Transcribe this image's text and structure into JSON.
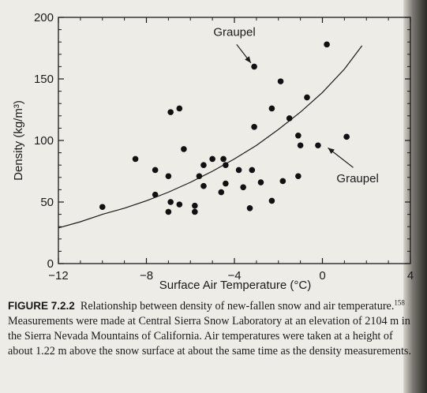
{
  "chart_data": {
    "type": "scatter",
    "xlabel": "Surface Air Temperature (°C)",
    "ylabel": "Density (kg/m³)",
    "xlim": [
      -12,
      4
    ],
    "ylim": [
      0,
      200
    ],
    "xticks": [
      -12,
      -8,
      -4,
      0,
      4
    ],
    "xtick_labels": [
      "−12",
      "−8",
      "−4",
      "0",
      "4"
    ],
    "yticks": [
      0,
      50,
      100,
      150,
      200
    ],
    "grid": false,
    "points": [
      {
        "x": -10.0,
        "y": 46
      },
      {
        "x": -8.5,
        "y": 85
      },
      {
        "x": -7.6,
        "y": 76
      },
      {
        "x": -7.6,
        "y": 56
      },
      {
        "x": -7.0,
        "y": 71
      },
      {
        "x": -7.0,
        "y": 42
      },
      {
        "x": -6.9,
        "y": 50
      },
      {
        "x": -6.9,
        "y": 123
      },
      {
        "x": -6.5,
        "y": 126
      },
      {
        "x": -6.5,
        "y": 48
      },
      {
        "x": -6.3,
        "y": 93
      },
      {
        "x": -5.8,
        "y": 42
      },
      {
        "x": -5.8,
        "y": 47
      },
      {
        "x": -5.6,
        "y": 71
      },
      {
        "x": -5.4,
        "y": 80
      },
      {
        "x": -5.4,
        "y": 63
      },
      {
        "x": -5.0,
        "y": 85
      },
      {
        "x": -4.6,
        "y": 58
      },
      {
        "x": -4.5,
        "y": 85
      },
      {
        "x": -4.4,
        "y": 80
      },
      {
        "x": -4.4,
        "y": 65
      },
      {
        "x": -3.8,
        "y": 76
      },
      {
        "x": -3.6,
        "y": 62
      },
      {
        "x": -3.3,
        "y": 45
      },
      {
        "x": -3.2,
        "y": 76
      },
      {
        "x": -3.1,
        "y": 160
      },
      {
        "x": -3.1,
        "y": 111
      },
      {
        "x": -2.8,
        "y": 66
      },
      {
        "x": -2.3,
        "y": 126
      },
      {
        "x": -2.3,
        "y": 51
      },
      {
        "x": -1.9,
        "y": 148
      },
      {
        "x": -1.8,
        "y": 67
      },
      {
        "x": -1.5,
        "y": 118
      },
      {
        "x": -1.1,
        "y": 104
      },
      {
        "x": -1.0,
        "y": 96
      },
      {
        "x": -1.1,
        "y": 71
      },
      {
        "x": -0.7,
        "y": 135
      },
      {
        "x": -0.2,
        "y": 96
      },
      {
        "x": 0.2,
        "y": 178
      },
      {
        "x": 1.1,
        "y": 103
      }
    ],
    "fit_curve": [
      {
        "x": -12.0,
        "y": 29
      },
      {
        "x": -11.0,
        "y": 34
      },
      {
        "x": -10.0,
        "y": 40
      },
      {
        "x": -9.0,
        "y": 45
      },
      {
        "x": -8.0,
        "y": 51
      },
      {
        "x": -7.0,
        "y": 58
      },
      {
        "x": -6.0,
        "y": 66
      },
      {
        "x": -5.0,
        "y": 75
      },
      {
        "x": -4.0,
        "y": 85
      },
      {
        "x": -3.0,
        "y": 96
      },
      {
        "x": -2.0,
        "y": 109
      },
      {
        "x": -1.0,
        "y": 123
      },
      {
        "x": 0.0,
        "y": 139
      },
      {
        "x": 1.0,
        "y": 158
      },
      {
        "x": 1.8,
        "y": 177
      }
    ],
    "annotations": [
      {
        "text": "Graupel",
        "label_x": -4.0,
        "label_y": 185,
        "arrow_from": [
          -3.9,
          178
        ],
        "arrow_to": [
          -3.25,
          163
        ]
      },
      {
        "text": "Graupel",
        "label_x": 1.6,
        "label_y": 66,
        "arrow_from": [
          1.4,
          78
        ],
        "arrow_to": [
          0.25,
          94
        ]
      }
    ]
  },
  "caption": {
    "label": "FIGURE 7.2.2",
    "text_part1": "Relationship between density of new-fallen snow and air temperature.",
    "ref": "158",
    "text_part2": "Measurements were made at Central Sierra Snow Laboratory at an elevation of 2104 m in the Sierra Nevada Mountains of California. Air temperatures were taken at a height of about 1.22 m above the snow surface at about the same time as the density measurements."
  }
}
